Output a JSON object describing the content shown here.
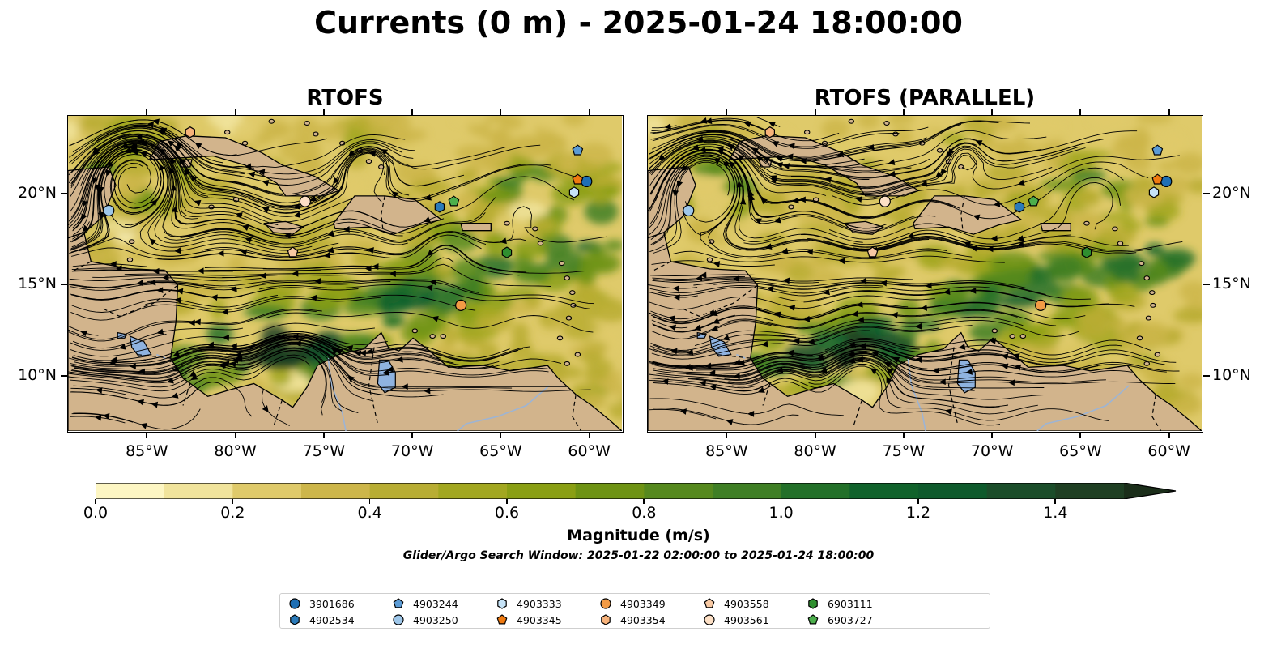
{
  "title": "Currents (0 m) - 2025-01-24 18:00:00",
  "panels": [
    {
      "title": "RTOFS"
    },
    {
      "title": "RTOFS (PARALLEL)"
    }
  ],
  "lon_ticks": [
    "85°W",
    "80°W",
    "75°W",
    "70°W",
    "65°W",
    "60°W"
  ],
  "lon_values": [
    -85,
    -80,
    -75,
    -70,
    -65,
    -60
  ],
  "lat_ticks": [
    "20°N",
    "15°N",
    "10°N"
  ],
  "lat_values": [
    20,
    15,
    10
  ],
  "extent": {
    "lon": [
      -89.5,
      -58.2
    ],
    "lat": [
      7.0,
      24.3
    ]
  },
  "colorbar": {
    "label": "Magnitude (m/s)",
    "tick_labels": [
      "0.0",
      "0.2",
      "0.4",
      "0.6",
      "0.8",
      "1.0",
      "1.2",
      "1.4"
    ],
    "tick_values": [
      0.0,
      0.2,
      0.4,
      0.6,
      0.8,
      1.0,
      1.2,
      1.4
    ],
    "range": [
      0.0,
      1.5
    ],
    "extend": "max",
    "colors": [
      "#fdf6c3",
      "#f1e49c",
      "#dfca6a",
      "#cdb64a",
      "#b8ad33",
      "#a2a720",
      "#8a9f14",
      "#6e9314",
      "#56891e",
      "#3f7f25",
      "#237029",
      "#10622b",
      "#0e5a2c",
      "#1b4d2a",
      "#1f3f23",
      "#1b2e1a"
    ]
  },
  "search_window": "Glider/Argo Search Window: 2025-01-22 02:00:00 to 2025-01-24 18:00:00",
  "land_color": "#d2b48c",
  "lake_color": "#8fb3e0",
  "floats": [
    {
      "id": "3901686",
      "marker": "circle",
      "color": "#1f6fb4",
      "lon": -60.2,
      "lat": 20.7
    },
    {
      "id": "4902534",
      "marker": "hexagon",
      "color": "#2b7bba",
      "lon": -68.5,
      "lat": 19.3
    },
    {
      "id": "4903244",
      "marker": "pentagon",
      "color": "#5b9bd5",
      "lon": -60.7,
      "lat": 22.4
    },
    {
      "id": "4903250",
      "marker": "circle",
      "color": "#9ec7ea",
      "lon": -87.2,
      "lat": 19.1
    },
    {
      "id": "4903333",
      "marker": "hexagon",
      "color": "#c6e3f7",
      "lon": -60.9,
      "lat": 20.1
    },
    {
      "id": "4903345",
      "marker": "pentagon",
      "color": "#f07a10",
      "lon": -60.7,
      "lat": 20.8
    },
    {
      "id": "4903349",
      "marker": "circle",
      "color": "#f39b45",
      "lon": -67.3,
      "lat": 13.9
    },
    {
      "id": "4903354",
      "marker": "hexagon",
      "color": "#f7b27a",
      "lon": -82.6,
      "lat": 23.4
    },
    {
      "id": "4903558",
      "marker": "pentagon",
      "color": "#f8c9a3",
      "lon": -76.8,
      "lat": 16.8
    },
    {
      "id": "4903561",
      "marker": "circle",
      "color": "#fde0c6",
      "lon": -76.1,
      "lat": 19.6
    },
    {
      "id": "6903111",
      "marker": "hexagon",
      "color": "#2f8f2f",
      "lon": -64.7,
      "lat": 16.8
    },
    {
      "id": "6903727",
      "marker": "pentagon",
      "color": "#4caf4c",
      "lon": -67.7,
      "lat": 19.6
    }
  ]
}
